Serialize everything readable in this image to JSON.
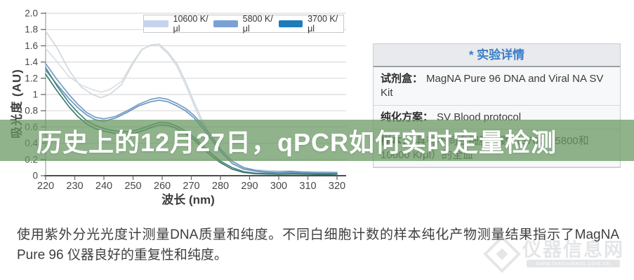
{
  "banner": {
    "title": "历史上的12月27日，qPCR如何实时定量检测"
  },
  "chart_data": {
    "type": "line",
    "xlabel": "波长 (nm)",
    "ylabel": "吸光度 (AU)",
    "xlim": [
      220,
      320
    ],
    "ylim": [
      0,
      2.0
    ],
    "grid": "horizontal",
    "x_ticks": [
      220,
      230,
      240,
      250,
      260,
      270,
      280,
      290,
      300,
      310,
      320
    ],
    "y_ticks": [
      {
        "v": 2.0,
        "label": "2.0"
      },
      {
        "v": 1.8,
        "label": "1.8"
      },
      {
        "v": 1.6,
        "label": "1.6"
      },
      {
        "v": 1.4,
        "label": "1.4"
      },
      {
        "v": 1.2,
        "label": "1.2"
      },
      {
        "v": 1.0,
        "label": "1"
      },
      {
        "v": 0.8,
        "label": "0.8"
      },
      {
        "v": 0.6,
        "label": "0.6"
      },
      {
        "v": 0.4,
        "label": "0.4"
      },
      {
        "v": 0.2,
        "label": "0.2"
      },
      {
        "v": 0.0,
        "label": "0"
      }
    ],
    "legend": {
      "position": "top",
      "entries": [
        {
          "label": "10600 K/μl",
          "swatch": "#c6d4eb"
        },
        {
          "label": "5800 K/μl",
          "swatch": "#7ba0d4"
        },
        {
          "label": "3700 K/μl",
          "swatch": "#1e7cba"
        }
      ]
    },
    "series": [
      {
        "id": "10600-rep1",
        "sample": "10600 K/μl",
        "color": "#cfd6dc",
        "points": [
          [
            220,
            1.78
          ],
          [
            224,
            1.57
          ],
          [
            228,
            1.3
          ],
          [
            232,
            1.1
          ],
          [
            236,
            1.0
          ],
          [
            239,
            0.96
          ],
          [
            242,
            1.0
          ],
          [
            246,
            1.12
          ],
          [
            250,
            1.38
          ],
          [
            253,
            1.55
          ],
          [
            256,
            1.61
          ],
          [
            259,
            1.62
          ],
          [
            262,
            1.52
          ],
          [
            265,
            1.38
          ],
          [
            268,
            1.16
          ],
          [
            271,
            0.9
          ],
          [
            274,
            0.66
          ],
          [
            277,
            0.47
          ],
          [
            280,
            0.32
          ],
          [
            284,
            0.18
          ],
          [
            288,
            0.1
          ],
          [
            292,
            0.075
          ],
          [
            296,
            0.065
          ],
          [
            300,
            0.06
          ],
          [
            305,
            0.055
          ],
          [
            310,
            0.05
          ],
          [
            315,
            0.05
          ],
          [
            320,
            0.05
          ]
        ]
      },
      {
        "id": "10600-rep2",
        "sample": "10600 K/μl",
        "color": "#d8dee3",
        "points": [
          [
            220,
            1.57
          ],
          [
            224,
            1.4
          ],
          [
            228,
            1.22
          ],
          [
            232,
            1.12
          ],
          [
            236,
            1.06
          ],
          [
            239,
            1.03
          ],
          [
            242,
            1.06
          ],
          [
            246,
            1.16
          ],
          [
            250,
            1.4
          ],
          [
            253,
            1.56
          ],
          [
            256,
            1.6
          ],
          [
            259,
            1.6
          ],
          [
            262,
            1.5
          ],
          [
            265,
            1.35
          ],
          [
            268,
            1.12
          ],
          [
            271,
            0.86
          ],
          [
            274,
            0.62
          ],
          [
            277,
            0.44
          ],
          [
            280,
            0.29
          ],
          [
            284,
            0.16
          ],
          [
            288,
            0.09
          ],
          [
            292,
            0.07
          ],
          [
            296,
            0.06
          ],
          [
            300,
            0.055
          ],
          [
            305,
            0.05
          ],
          [
            310,
            0.05
          ],
          [
            315,
            0.045
          ],
          [
            320,
            0.045
          ]
        ]
      },
      {
        "id": "5800-rep1",
        "sample": "5800 K/μl",
        "color": "#6e97c3",
        "points": [
          [
            220,
            1.38
          ],
          [
            224,
            1.18
          ],
          [
            228,
            1.0
          ],
          [
            231,
            0.88
          ],
          [
            234,
            0.78
          ],
          [
            237,
            0.72
          ],
          [
            240,
            0.7
          ],
          [
            244,
            0.73
          ],
          [
            248,
            0.8
          ],
          [
            252,
            0.88
          ],
          [
            256,
            0.94
          ],
          [
            259,
            0.96
          ],
          [
            262,
            0.94
          ],
          [
            265,
            0.89
          ],
          [
            268,
            0.83
          ],
          [
            271,
            0.74
          ],
          [
            274,
            0.62
          ],
          [
            277,
            0.48
          ],
          [
            280,
            0.33
          ],
          [
            284,
            0.18
          ],
          [
            288,
            0.1
          ],
          [
            292,
            0.065
          ],
          [
            296,
            0.05
          ],
          [
            300,
            0.045
          ],
          [
            304,
            0.055
          ],
          [
            308,
            0.045
          ],
          [
            312,
            0.04
          ],
          [
            316,
            0.038
          ],
          [
            320,
            0.035
          ]
        ]
      },
      {
        "id": "5800-rep2",
        "sample": "5800 K/μl",
        "color": "#6490bd",
        "points": [
          [
            220,
            1.3
          ],
          [
            224,
            1.12
          ],
          [
            228,
            0.95
          ],
          [
            231,
            0.84
          ],
          [
            234,
            0.75
          ],
          [
            237,
            0.69
          ],
          [
            240,
            0.67
          ],
          [
            244,
            0.71
          ],
          [
            248,
            0.78
          ],
          [
            252,
            0.86
          ],
          [
            256,
            0.91
          ],
          [
            259,
            0.93
          ],
          [
            262,
            0.91
          ],
          [
            265,
            0.86
          ],
          [
            268,
            0.8
          ],
          [
            271,
            0.71
          ],
          [
            274,
            0.58
          ],
          [
            277,
            0.44
          ],
          [
            280,
            0.3
          ],
          [
            284,
            0.15
          ],
          [
            288,
            0.08
          ],
          [
            292,
            0.055
          ],
          [
            296,
            0.04
          ],
          [
            300,
            0.035
          ],
          [
            304,
            0.04
          ],
          [
            308,
            0.035
          ],
          [
            312,
            0.03
          ],
          [
            316,
            0.03
          ],
          [
            320,
            0.03
          ]
        ]
      },
      {
        "id": "3700-rep1",
        "sample": "3700 K/μl",
        "color": "#3e8077",
        "points": [
          [
            220,
            1.33
          ],
          [
            224,
            1.1
          ],
          [
            228,
            0.9
          ],
          [
            231,
            0.78
          ],
          [
            234,
            0.68
          ],
          [
            237,
            0.62
          ],
          [
            240,
            0.58
          ],
          [
            244,
            0.55
          ],
          [
            248,
            0.54
          ],
          [
            252,
            0.57
          ],
          [
            256,
            0.62
          ],
          [
            259,
            0.655
          ],
          [
            262,
            0.65
          ],
          [
            265,
            0.61
          ],
          [
            268,
            0.55
          ],
          [
            271,
            0.47
          ],
          [
            274,
            0.37
          ],
          [
            277,
            0.27
          ],
          [
            280,
            0.18
          ],
          [
            284,
            0.1
          ],
          [
            288,
            0.05
          ],
          [
            292,
            0.03
          ],
          [
            296,
            0.025
          ],
          [
            300,
            0.02
          ],
          [
            305,
            0.025
          ],
          [
            310,
            0.02
          ],
          [
            315,
            0.02
          ],
          [
            320,
            0.02
          ]
        ]
      },
      {
        "id": "3700-rep2",
        "sample": "3700 K/μl",
        "color": "#35756c",
        "points": [
          [
            220,
            1.25
          ],
          [
            224,
            1.04
          ],
          [
            228,
            0.85
          ],
          [
            231,
            0.73
          ],
          [
            234,
            0.64
          ],
          [
            237,
            0.58
          ],
          [
            240,
            0.55
          ],
          [
            244,
            0.52
          ],
          [
            248,
            0.51
          ],
          [
            252,
            0.54
          ],
          [
            256,
            0.59
          ],
          [
            259,
            0.625
          ],
          [
            262,
            0.62
          ],
          [
            265,
            0.58
          ],
          [
            268,
            0.52
          ],
          [
            271,
            0.44
          ],
          [
            274,
            0.34
          ],
          [
            277,
            0.24
          ],
          [
            280,
            0.16
          ],
          [
            284,
            0.08
          ],
          [
            288,
            0.04
          ],
          [
            292,
            0.025
          ],
          [
            296,
            0.02
          ],
          [
            300,
            0.018
          ],
          [
            305,
            0.02
          ],
          [
            310,
            0.018
          ],
          [
            315,
            0.015
          ],
          [
            320,
            0.018
          ]
        ]
      }
    ]
  },
  "details_table": {
    "header": "* 实验详情",
    "rows": [
      {
        "label": "试剂盒：",
        "value_lines": [
          "MagNA Pure 96 DNA and Viral NA SV Kit"
        ]
      },
      {
        "label": "纯化方案：",
        "value_lines": [
          "SV Blood protocol"
        ]
      },
      {
        "label": "样本：",
        "value_lines": [
          "具有不同白细胞计数（3700、5800和",
          "10600 K/μl）的全血"
        ]
      }
    ]
  },
  "caption": {
    "text": "使用紫外分光光度计测量DNA质量和纯度。不同白细胞计数的样本纯化产物测量结果指示了MagNA Pure 96 仪器良好的重复性和纯度。"
  },
  "watermark": {
    "site_name": "仪器信息网",
    "url_text": "www.instrument.com.cn"
  }
}
